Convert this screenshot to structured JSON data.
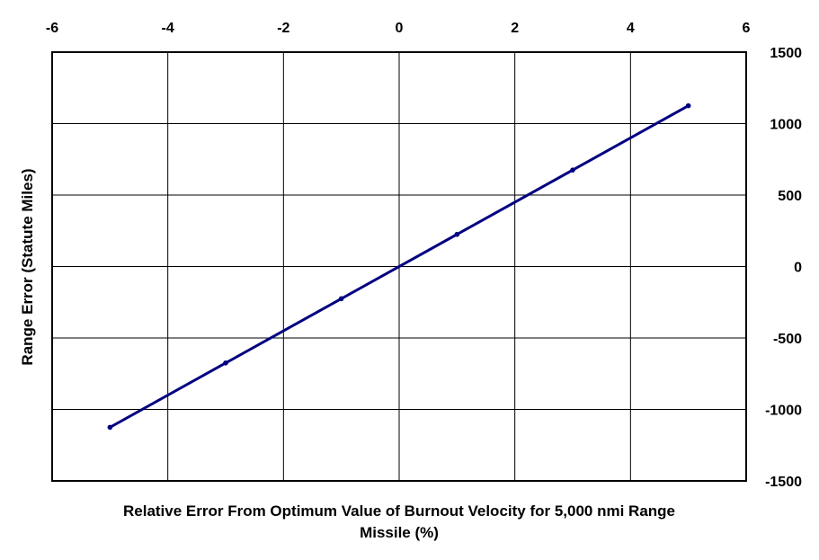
{
  "chart_data": {
    "type": "line",
    "title": "",
    "xlabel_lines": [
      "Relative Error From Optimum Value of Burnout Velocity for 5,000 nmi Range",
      "Missile (%)"
    ],
    "ylabel": "Range Error (Statute Miles)",
    "xlim": [
      -6,
      6
    ],
    "ylim": [
      -1500,
      1500
    ],
    "x_ticks": [
      "-6",
      "-4",
      "-2",
      "0",
      "2",
      "4",
      "6"
    ],
    "y_ticks": [
      "1500",
      "1000",
      "500",
      "0",
      "-500",
      "-1000",
      "-1500"
    ],
    "x_axis_position": "top",
    "y_axis_position": "right",
    "grid": true,
    "series": [
      {
        "color": "#000080",
        "x": [
          -5,
          -3,
          -1,
          1,
          3,
          5
        ],
        "y": [
          -1125,
          -675,
          -225,
          225,
          675,
          1125
        ]
      }
    ]
  }
}
